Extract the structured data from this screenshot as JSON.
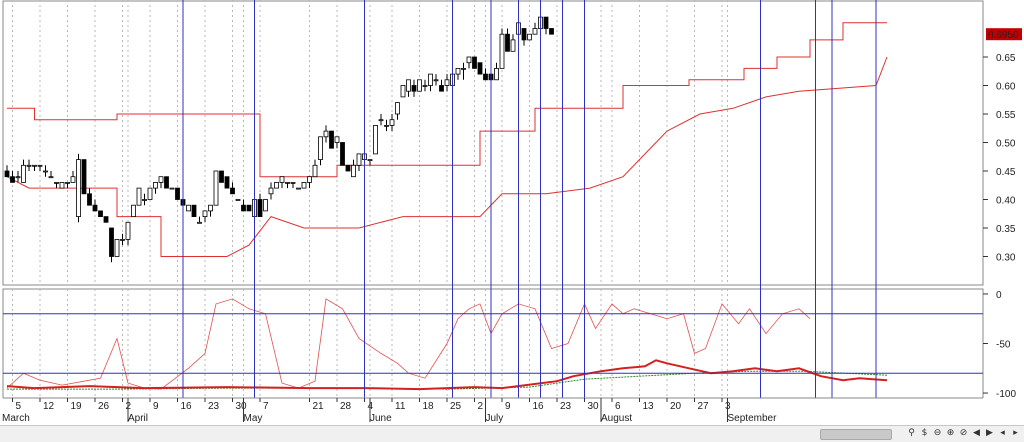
{
  "chart_data": {
    "type": "candlestick",
    "price_panel": {
      "ylim": [
        0.25,
        0.75
      ],
      "yticks": [
        "0.30",
        "0.35",
        "0.40",
        "0.45",
        "0.50",
        "0.55",
        "0.60",
        "0.65"
      ],
      "last_price_label": "0.6950",
      "candles": [
        [
          0.45,
          0.46,
          0.44,
          0.44
        ],
        [
          0.44,
          0.45,
          0.43,
          0.43
        ],
        [
          0.44,
          0.45,
          0.43,
          0.44
        ],
        [
          0.43,
          0.47,
          0.43,
          0.46
        ],
        [
          0.46,
          0.47,
          0.45,
          0.46
        ],
        [
          0.46,
          0.46,
          0.45,
          0.46
        ],
        [
          0.46,
          0.46,
          0.45,
          0.46
        ],
        [
          0.45,
          0.46,
          0.44,
          0.45
        ],
        [
          0.44,
          0.45,
          0.44,
          0.44
        ],
        [
          0.43,
          0.43,
          0.42,
          0.43
        ],
        [
          0.42,
          0.43,
          0.42,
          0.43
        ],
        [
          0.43,
          0.43,
          0.42,
          0.43
        ],
        [
          0.43,
          0.45,
          0.43,
          0.44
        ],
        [
          0.37,
          0.48,
          0.36,
          0.47
        ],
        [
          0.47,
          0.47,
          0.41,
          0.41
        ],
        [
          0.41,
          0.42,
          0.39,
          0.39
        ],
        [
          0.39,
          0.4,
          0.38,
          0.38
        ],
        [
          0.38,
          0.38,
          0.37,
          0.37
        ],
        [
          0.37,
          0.37,
          0.36,
          0.36
        ],
        [
          0.35,
          0.35,
          0.29,
          0.3
        ],
        [
          0.3,
          0.33,
          0.3,
          0.33
        ],
        [
          0.33,
          0.34,
          0.32,
          0.33
        ],
        [
          0.33,
          0.36,
          0.32,
          0.36
        ],
        [
          0.37,
          0.39,
          0.37,
          0.39
        ],
        [
          0.39,
          0.42,
          0.39,
          0.42
        ],
        [
          0.4,
          0.41,
          0.39,
          0.4
        ],
        [
          0.4,
          0.42,
          0.4,
          0.42
        ],
        [
          0.42,
          0.43,
          0.41,
          0.43
        ],
        [
          0.43,
          0.44,
          0.42,
          0.44
        ],
        [
          0.44,
          0.44,
          0.42,
          0.42
        ],
        [
          0.42,
          0.42,
          0.42,
          0.42
        ],
        [
          0.42,
          0.42,
          0.4,
          0.4
        ],
        [
          0.4,
          0.4,
          0.39,
          0.39
        ],
        [
          0.38,
          0.39,
          0.38,
          0.39
        ],
        [
          0.39,
          0.39,
          0.37,
          0.37
        ],
        [
          0.36,
          0.37,
          0.36,
          0.36
        ],
        [
          0.37,
          0.38,
          0.36,
          0.38
        ],
        [
          0.38,
          0.39,
          0.37,
          0.39
        ],
        [
          0.39,
          0.45,
          0.39,
          0.45
        ],
        [
          0.45,
          0.45,
          0.43,
          0.43
        ],
        [
          0.44,
          0.44,
          0.42,
          0.42
        ],
        [
          0.42,
          0.43,
          0.41,
          0.41
        ],
        [
          0.4,
          0.4,
          0.4,
          0.4
        ],
        [
          0.39,
          0.4,
          0.38,
          0.38
        ],
        [
          0.39,
          0.39,
          0.38,
          0.38
        ],
        [
          0.37,
          0.4,
          0.37,
          0.4
        ],
        [
          0.4,
          0.41,
          0.37,
          0.37
        ],
        [
          0.38,
          0.4,
          0.38,
          0.4
        ],
        [
          0.41,
          0.43,
          0.4,
          0.42
        ],
        [
          0.42,
          0.43,
          0.42,
          0.43
        ],
        [
          0.43,
          0.44,
          0.42,
          0.44
        ],
        [
          0.43,
          0.43,
          0.42,
          0.43
        ],
        [
          0.43,
          0.43,
          0.42,
          0.43
        ],
        [
          0.42,
          0.42,
          0.42,
          0.42
        ],
        [
          0.42,
          0.43,
          0.42,
          0.43
        ],
        [
          0.43,
          0.44,
          0.42,
          0.44
        ],
        [
          0.44,
          0.47,
          0.44,
          0.46
        ],
        [
          0.47,
          0.51,
          0.46,
          0.51
        ],
        [
          0.51,
          0.53,
          0.5,
          0.52
        ],
        [
          0.52,
          0.52,
          0.49,
          0.49
        ],
        [
          0.5,
          0.51,
          0.49,
          0.51
        ],
        [
          0.5,
          0.5,
          0.46,
          0.46
        ],
        [
          0.46,
          0.46,
          0.45,
          0.45
        ],
        [
          0.44,
          0.47,
          0.44,
          0.46
        ],
        [
          0.46,
          0.48,
          0.45,
          0.48
        ],
        [
          0.47,
          0.48,
          0.46,
          0.48
        ],
        [
          0.47,
          0.47,
          0.46,
          0.47
        ],
        [
          0.48,
          0.53,
          0.48,
          0.53
        ],
        [
          0.54,
          0.55,
          0.53,
          0.54
        ],
        [
          0.53,
          0.54,
          0.52,
          0.53
        ],
        [
          0.53,
          0.55,
          0.52,
          0.54
        ],
        [
          0.55,
          0.57,
          0.54,
          0.57
        ],
        [
          0.58,
          0.6,
          0.58,
          0.6
        ],
        [
          0.59,
          0.61,
          0.58,
          0.61
        ],
        [
          0.6,
          0.61,
          0.58,
          0.59
        ],
        [
          0.59,
          0.61,
          0.59,
          0.61
        ],
        [
          0.6,
          0.61,
          0.59,
          0.6
        ],
        [
          0.6,
          0.62,
          0.59,
          0.62
        ],
        [
          0.61,
          0.62,
          0.6,
          0.61
        ],
        [
          0.6,
          0.61,
          0.59,
          0.59
        ],
        [
          0.6,
          0.62,
          0.59,
          0.61
        ],
        [
          0.6,
          0.63,
          0.6,
          0.62
        ],
        [
          0.62,
          0.63,
          0.61,
          0.63
        ],
        [
          0.63,
          0.64,
          0.61,
          0.63
        ],
        [
          0.64,
          0.65,
          0.63,
          0.65
        ],
        [
          0.65,
          0.65,
          0.63,
          0.63
        ],
        [
          0.64,
          0.64,
          0.62,
          0.62
        ],
        [
          0.62,
          0.63,
          0.61,
          0.61
        ],
        [
          0.62,
          0.63,
          0.6,
          0.61
        ],
        [
          0.61,
          0.64,
          0.61,
          0.63
        ],
        [
          0.63,
          0.7,
          0.63,
          0.69
        ],
        [
          0.69,
          0.7,
          0.66,
          0.66
        ],
        [
          0.66,
          0.69,
          0.66,
          0.68
        ],
        [
          0.69,
          0.71,
          0.68,
          0.71
        ],
        [
          0.7,
          0.7,
          0.67,
          0.68
        ],
        [
          0.68,
          0.69,
          0.68,
          0.69
        ],
        [
          0.69,
          0.71,
          0.69,
          0.7
        ],
        [
          0.7,
          0.72,
          0.69,
          0.72
        ],
        [
          0.72,
          0.72,
          0.69,
          0.7
        ],
        [
          0.7,
          0.7,
          0.69,
          0.69
        ]
      ],
      "upper_band": [
        [
          0,
          0.56
        ],
        [
          5,
          0.56
        ],
        [
          5,
          0.54
        ],
        [
          20,
          0.54
        ],
        [
          20,
          0.55
        ],
        [
          46,
          0.55
        ],
        [
          46,
          0.44
        ],
        [
          60,
          0.44
        ],
        [
          60,
          0.46
        ],
        [
          86,
          0.46
        ],
        [
          86,
          0.52
        ],
        [
          96,
          0.52
        ],
        [
          96,
          0.56
        ],
        [
          112,
          0.56
        ],
        [
          112,
          0.6
        ],
        [
          124,
          0.6
        ],
        [
          124,
          0.61
        ],
        [
          134,
          0.61
        ],
        [
          134,
          0.63
        ],
        [
          140,
          0.63
        ],
        [
          140,
          0.65
        ],
        [
          146,
          0.65
        ],
        [
          146,
          0.68
        ],
        [
          152,
          0.68
        ],
        [
          152,
          0.71
        ],
        [
          160,
          0.71
        ]
      ],
      "lower_band": [
        [
          0,
          0.44
        ],
        [
          4,
          0.42
        ],
        [
          20,
          0.42
        ],
        [
          20,
          0.37
        ],
        [
          28,
          0.37
        ],
        [
          28,
          0.3
        ],
        [
          40,
          0.3
        ],
        [
          44,
          0.32
        ],
        [
          48,
          0.37
        ],
        [
          54,
          0.35
        ],
        [
          64,
          0.35
        ],
        [
          72,
          0.37
        ],
        [
          86,
          0.37
        ],
        [
          90,
          0.41
        ],
        [
          98,
          0.41
        ],
        [
          106,
          0.42
        ],
        [
          112,
          0.44
        ],
        [
          116,
          0.48
        ],
        [
          120,
          0.52
        ],
        [
          126,
          0.55
        ],
        [
          132,
          0.56
        ],
        [
          138,
          0.58
        ],
        [
          144,
          0.59
        ],
        [
          158,
          0.6
        ],
        [
          160,
          0.65
        ]
      ]
    },
    "indicator_panel": {
      "ylim": [
        -105,
        5
      ],
      "yticks": [
        "0",
        "-50",
        "-100"
      ],
      "h_levels": [
        -20,
        -80
      ],
      "thin_line": [
        [
          0,
          -95
        ],
        [
          3,
          -80
        ],
        [
          6,
          -87
        ],
        [
          10,
          -92
        ],
        [
          14,
          -88
        ],
        [
          17,
          -85
        ],
        [
          20,
          -45
        ],
        [
          22,
          -90
        ],
        [
          25,
          -95
        ],
        [
          28,
          -96
        ],
        [
          33,
          -75
        ],
        [
          36,
          -60
        ],
        [
          38,
          -10
        ],
        [
          41,
          -5
        ],
        [
          44,
          -15
        ],
        [
          47,
          -20
        ],
        [
          50,
          -90
        ],
        [
          53,
          -95
        ],
        [
          56,
          -88
        ],
        [
          58,
          -5
        ],
        [
          61,
          -15
        ],
        [
          64,
          -45
        ],
        [
          68,
          -60
        ],
        [
          71,
          -70
        ],
        [
          73,
          -80
        ],
        [
          76,
          -85
        ],
        [
          80,
          -50
        ],
        [
          82,
          -25
        ],
        [
          84,
          -15
        ],
        [
          86,
          -10
        ],
        [
          88,
          -40
        ],
        [
          90,
          -20
        ],
        [
          93,
          -10
        ],
        [
          96,
          -15
        ],
        [
          99,
          -55
        ],
        [
          102,
          -50
        ],
        [
          105,
          -10
        ],
        [
          107,
          -35
        ],
        [
          110,
          -10
        ],
        [
          112,
          -20
        ],
        [
          114,
          -15
        ],
        [
          117,
          -20
        ],
        [
          120,
          -25
        ],
        [
          123,
          -20
        ],
        [
          125,
          -60
        ],
        [
          127,
          -55
        ],
        [
          130,
          -10
        ],
        [
          133,
          -30
        ],
        [
          135,
          -15
        ],
        [
          138,
          -40
        ],
        [
          141,
          -20
        ],
        [
          144,
          -15
        ],
        [
          146,
          -25
        ]
      ],
      "thick_line": [
        [
          0,
          -93
        ],
        [
          5,
          -95
        ],
        [
          15,
          -93
        ],
        [
          25,
          -95
        ],
        [
          40,
          -94
        ],
        [
          55,
          -95
        ],
        [
          65,
          -95
        ],
        [
          75,
          -96
        ],
        [
          85,
          -94
        ],
        [
          90,
          -95
        ],
        [
          100,
          -88
        ],
        [
          103,
          -83
        ],
        [
          108,
          -78
        ],
        [
          112,
          -75
        ],
        [
          116,
          -73
        ],
        [
          118,
          -67
        ],
        [
          120,
          -70
        ],
        [
          124,
          -75
        ],
        [
          128,
          -80
        ],
        [
          132,
          -78
        ],
        [
          136,
          -75
        ],
        [
          140,
          -78
        ],
        [
          144,
          -75
        ],
        [
          148,
          -83
        ],
        [
          152,
          -87
        ],
        [
          155,
          -85
        ],
        [
          160,
          -87
        ]
      ],
      "green_line": [
        [
          0,
          -96
        ],
        [
          20,
          -96
        ],
        [
          40,
          -95
        ],
        [
          60,
          -95
        ],
        [
          80,
          -96
        ],
        [
          95,
          -94
        ],
        [
          105,
          -86
        ],
        [
          115,
          -83
        ],
        [
          125,
          -80
        ],
        [
          135,
          -78
        ],
        [
          145,
          -78
        ],
        [
          160,
          -82
        ]
      ]
    },
    "x_axis": {
      "labels": [
        {
          "t": "March",
          "i": -1
        },
        {
          "t": "5",
          "i": 1
        },
        {
          "t": "12",
          "i": 6
        },
        {
          "t": "19",
          "i": 11
        },
        {
          "t": "26",
          "i": 16
        },
        {
          "t": "2",
          "i": 21
        },
        {
          "t": "April",
          "i": 22
        },
        {
          "t": "9",
          "i": 26
        },
        {
          "t": "16",
          "i": 31
        },
        {
          "t": "23",
          "i": 36
        },
        {
          "t": "30",
          "i": 41
        },
        {
          "t": "May",
          "i": 43
        },
        {
          "t": "7",
          "i": 46
        },
        {
          "t": "21",
          "i": 55
        },
        {
          "t": "28",
          "i": 60
        },
        {
          "t": "4",
          "i": 65
        },
        {
          "t": "June",
          "i": 66
        },
        {
          "t": "11",
          "i": 70
        },
        {
          "t": "18",
          "i": 75
        },
        {
          "t": "25",
          "i": 80
        },
        {
          "t": "2",
          "i": 85
        },
        {
          "t": "July",
          "i": 87
        },
        {
          "t": "9",
          "i": 90
        },
        {
          "t": "16",
          "i": 95
        },
        {
          "t": "23",
          "i": 100
        },
        {
          "t": "30",
          "i": 105
        },
        {
          "t": "August",
          "i": 108
        },
        {
          "t": "6",
          "i": 110
        },
        {
          "t": "13",
          "i": 115
        },
        {
          "t": "20",
          "i": 120
        },
        {
          "t": "27",
          "i": 125
        },
        {
          "t": "3",
          "i": 130
        },
        {
          "t": "September",
          "i": 131
        }
      ]
    }
  },
  "colors": {
    "candle_up": "#ffffff",
    "candle_down": "#000000",
    "down_body_dark_blue": "#0a0a3a",
    "band": "#e03030",
    "vline": "#3030c0",
    "hline": "#3030c0",
    "thick": "#d42020",
    "thin": "#e35050",
    "green": "#2a8a2a",
    "grid": "#b8b8b8",
    "last_bg": "#c00000",
    "last_fg": "#ffffff"
  },
  "controls": {
    "icons": [
      "drag-link-icon",
      "currency-icon",
      "zoom-out-icon",
      "zoom-in-icon",
      "zoom-reset-icon",
      "play-back-icon",
      "play-forward-icon",
      "scroll-left-icon",
      "scroll-right-icon"
    ],
    "glyphs": [
      "⚲",
      "$",
      "⊖",
      "⊕",
      "⊘",
      "◀",
      "▶",
      "◂",
      "▸"
    ]
  }
}
